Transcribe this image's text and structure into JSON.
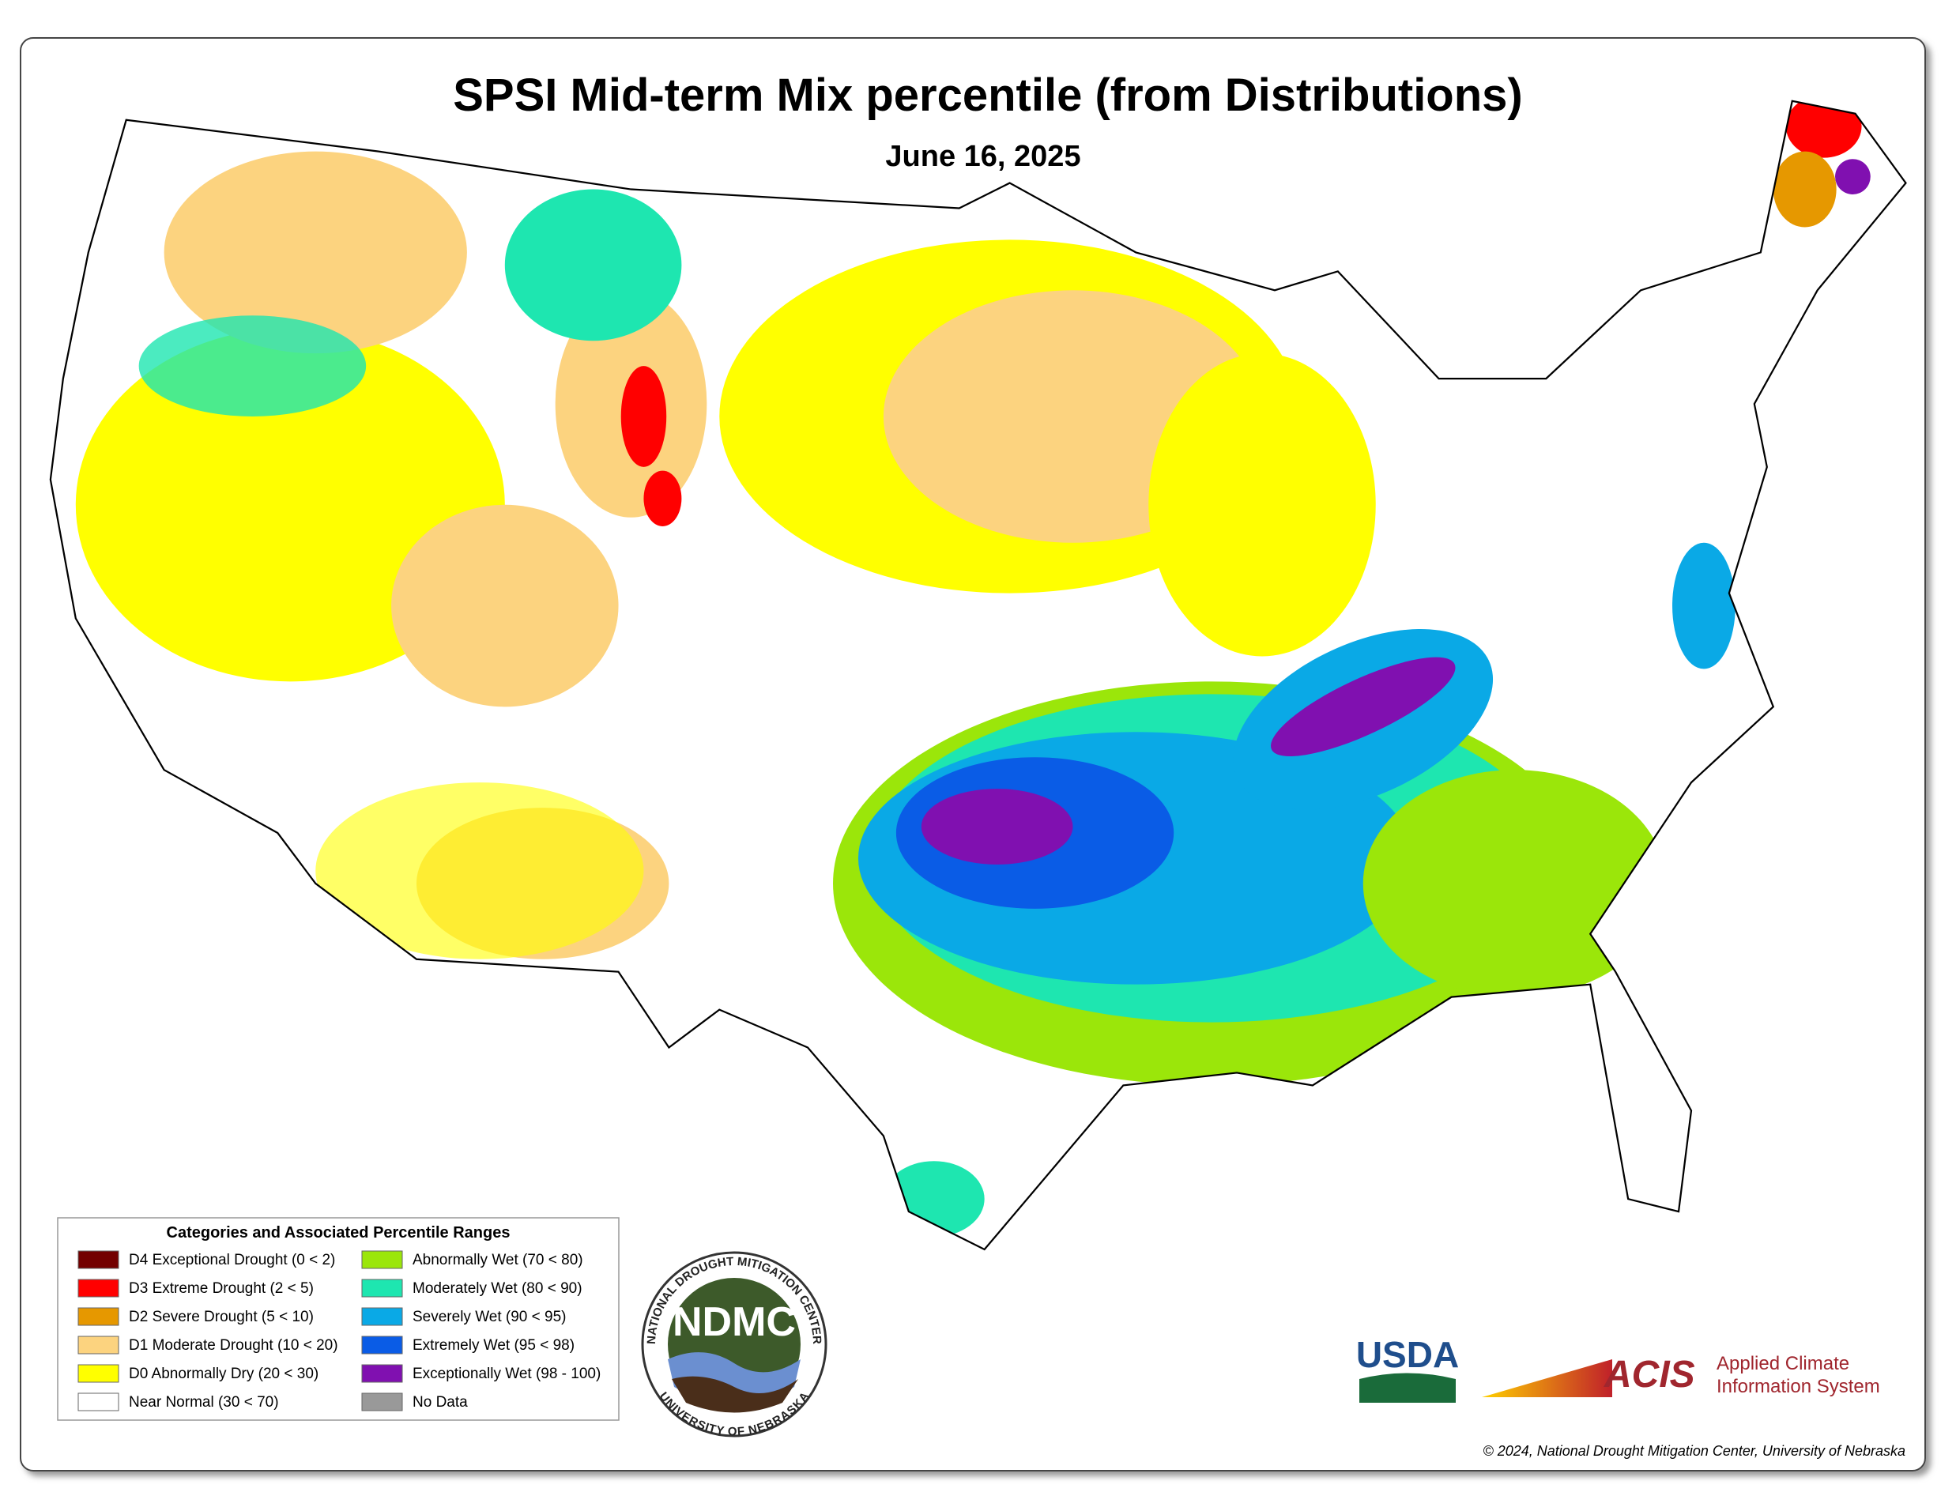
{
  "header": {
    "title": "SPSI Mid-term Mix percentile (from Distributions)",
    "subtitle": "June 16, 2025"
  },
  "legend": {
    "title": "Categories and Associated Percentile Ranges",
    "items": [
      {
        "label": "D4 Exceptional Drought (0 < 2)",
        "color": "#730000"
      },
      {
        "label": "D3 Extreme Drought (2 < 5)",
        "color": "#ff0000"
      },
      {
        "label": "D2 Severe Drought (5 < 10)",
        "color": "#e69800"
      },
      {
        "label": "D1 Moderate Drought (10 < 20)",
        "color": "#fcd37f"
      },
      {
        "label": "D0 Abnormally Dry (20 < 30)",
        "color": "#ffff00"
      },
      {
        "label": "Near Normal (30 < 70)",
        "color": "#ffffff"
      },
      {
        "label": "Abnormally Wet (70 < 80)",
        "color": "#9be60a"
      },
      {
        "label": "Moderately Wet (80 < 90)",
        "color": "#1ee6b0"
      },
      {
        "label": "Severely Wet (90 < 95)",
        "color": "#0aa9e6"
      },
      {
        "label": "Extremely Wet (95 < 98)",
        "color": "#0a5ce6"
      },
      {
        "label": "Exceptionally Wet (98 - 100)",
        "color": "#8010b0"
      },
      {
        "label": "No Data",
        "color": "#999999"
      }
    ]
  },
  "logos": {
    "ndmc": "NDMC",
    "ndmc_top": "NATIONAL DROUGHT MITIGATION CENTER",
    "ndmc_bottom": "UNIVERSITY OF NEBRASKA",
    "usda": "USDA",
    "acis": "ACIS",
    "acis_line1": "Applied Climate",
    "acis_line2": "Information System"
  },
  "footer": {
    "copyright": "© 2024, National Drought Mitigation Center, University of Nebraska"
  }
}
